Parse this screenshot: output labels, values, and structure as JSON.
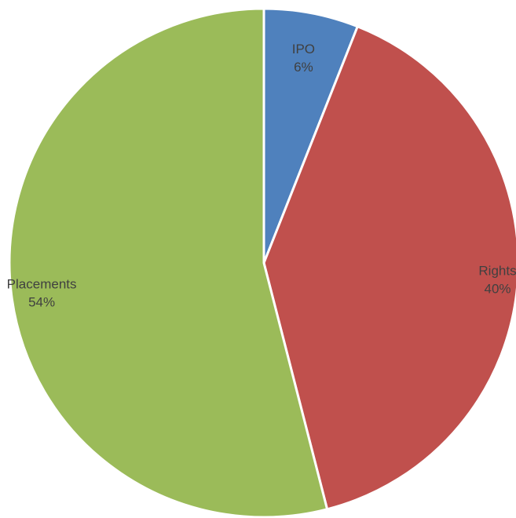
{
  "chart_data": {
    "type": "pie",
    "title": "",
    "slices": [
      {
        "label": "IPO",
        "value": 6,
        "value_label": "6%",
        "color": "#4f81bd"
      },
      {
        "label": "Rights",
        "value": 40,
        "value_label": "40%",
        "color": "#c0504d"
      },
      {
        "label": "Placements",
        "value": 54,
        "value_label": "54%",
        "color": "#9bbb59"
      }
    ],
    "start_angle_deg": 0,
    "direction": "clockwise",
    "legend": "none",
    "data_labels": "inside"
  }
}
